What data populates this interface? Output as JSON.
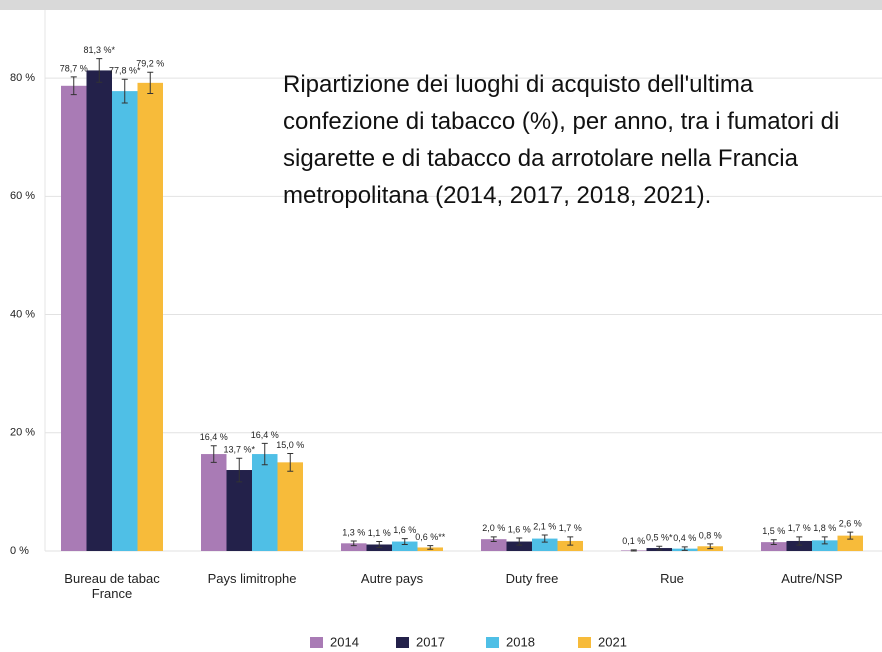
{
  "chart_data": {
    "type": "bar",
    "title": "Ripartizione dei luoghi di acquisto dell'ultima confezione di tabacco (%), per anno, tra i fumatori di sigarette e di tabacco da arrotolare nella Francia metropolitana (2014, 2017, 2018, 2021).",
    "categories": [
      "Bureau de tabac France",
      "Pays limitrophe",
      "Autre pays",
      "Duty free",
      "Rue",
      "Autre/NSP"
    ],
    "series": [
      {
        "name": "2014",
        "color": "#a97bb5",
        "values": [
          78.7,
          16.4,
          1.3,
          2.0,
          0.1,
          1.5
        ],
        "errors": [
          1.5,
          1.4,
          0.4,
          0.4,
          0.1,
          0.4
        ],
        "value_labels": [
          "78,7 %",
          "16,4 %",
          "1,3 %",
          "2,0 %",
          "0,1 %",
          "1,5 %"
        ]
      },
      {
        "name": "2017",
        "color": "#23214a",
        "values": [
          81.3,
          13.7,
          1.1,
          1.6,
          0.5,
          1.7
        ],
        "errors": [
          2.0,
          2.0,
          0.5,
          0.6,
          0.3,
          0.7
        ],
        "value_labels": [
          "81,3 %*",
          "13,7 %*",
          "1,1 %",
          "1,6 %",
          "0,5 %*",
          "1,7 %"
        ]
      },
      {
        "name": "2018",
        "color": "#4fbfe6",
        "values": [
          77.8,
          16.4,
          1.6,
          2.1,
          0.4,
          1.8
        ],
        "errors": [
          2.0,
          1.8,
          0.5,
          0.6,
          0.3,
          0.6
        ],
        "value_labels": [
          "77,8 %*",
          "16,4 %",
          "1,6 %",
          "2,1 %",
          "0,4 %",
          "1,8 %"
        ]
      },
      {
        "name": "2021",
        "color": "#f7bb3a",
        "values": [
          79.2,
          15.0,
          0.6,
          1.7,
          0.8,
          2.6
        ],
        "errors": [
          1.8,
          1.5,
          0.3,
          0.7,
          0.4,
          0.6
        ],
        "value_labels": [
          "79,2 %",
          "15,0 %",
          "0,6 %**",
          "1,7 %",
          "0,8 %",
          "2,6 %"
        ]
      }
    ],
    "ylim": [
      0,
      90
    ],
    "yticks": [
      {
        "value": 0,
        "label": "0 %"
      },
      {
        "value": 20,
        "label": "20 %"
      },
      {
        "value": 40,
        "label": "40 %"
      },
      {
        "value": 60,
        "label": "60 %"
      },
      {
        "value": 80,
        "label": "80 %"
      }
    ],
    "grid": true,
    "legend": "bottom"
  }
}
